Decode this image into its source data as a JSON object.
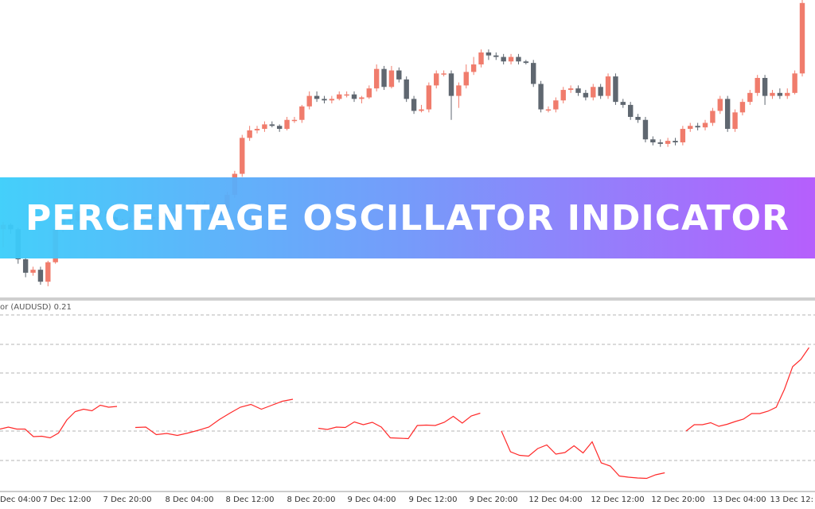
{
  "banner": {
    "title": "PERCENTAGE OSCILLATOR INDICATOR"
  },
  "indicator": {
    "label": "or (AUDUSD) 0.21"
  },
  "colors": {
    "bull": "#f07c6c",
    "bear": "#5f6770",
    "oscillator": "#ff2a2a",
    "grid": "#b5b5b5",
    "banner_left": "#3acdfa",
    "banner_right": "#b256fc"
  },
  "chart_data": [
    {
      "type": "candlestick",
      "title": "",
      "x_labels": [
        "Dec 04:00",
        "7 Dec 12:00",
        "7 Dec 20:00",
        "8 Dec 04:00",
        "8 Dec 12:00",
        "8 Dec 20:00",
        "9 Dec 04:00",
        "9 Dec 12:00",
        "9 Dec 20:00",
        "12 Dec 04:00",
        "12 Dec 12:00",
        "12 Dec 20:00",
        "13 Dec 04:00",
        "13 Dec 12:"
      ],
      "y_range": [
        0,
        100
      ],
      "candles": [
        [
          37,
          40,
          25,
          42
        ],
        [
          40,
          37,
          34,
          41
        ],
        [
          37,
          17,
          14,
          38
        ],
        [
          17,
          8,
          5,
          18
        ],
        [
          8,
          10,
          6,
          12
        ],
        [
          10,
          2,
          0,
          12
        ],
        [
          2,
          15,
          -1,
          16
        ],
        [
          15,
          37,
          14,
          39
        ],
        [
          37,
          44,
          35,
          45
        ],
        [
          44,
          43,
          40,
          46
        ],
        [
          43,
          49,
          42,
          51
        ],
        [
          49,
          50,
          47,
          52
        ],
        [
          50,
          48,
          46,
          51
        ],
        [
          48,
          49,
          45,
          50
        ],
        [
          49,
          45,
          44,
          50
        ],
        [
          45,
          42,
          40,
          46
        ],
        [
          42,
          42,
          40,
          44
        ],
        [
          42,
          43,
          40,
          45
        ],
        [
          43,
          43,
          41,
          45
        ],
        [
          43,
          44,
          41,
          46
        ],
        [
          44,
          45,
          42,
          46
        ],
        [
          45,
          45,
          43,
          47
        ],
        [
          45,
          48,
          44,
          50
        ],
        [
          48,
          51,
          47,
          53
        ],
        [
          51,
          52,
          49,
          53
        ],
        [
          52,
          52,
          48,
          54
        ],
        [
          52,
          54,
          51,
          56
        ],
        [
          54,
          50,
          48,
          56
        ],
        [
          50,
          47,
          45,
          52
        ],
        [
          47,
          51,
          46,
          53
        ],
        [
          51,
          60,
          50,
          62
        ],
        [
          60,
          74,
          58,
          76
        ],
        [
          74,
          98,
          72,
          100
        ],
        [
          98,
          103,
          96,
          106
        ],
        [
          103,
          104,
          101,
          106
        ],
        [
          104,
          107,
          102,
          109
        ],
        [
          107,
          106,
          105,
          109
        ],
        [
          106,
          104,
          102,
          107
        ],
        [
          104,
          110,
          103,
          112
        ],
        [
          110,
          110,
          108,
          112
        ],
        [
          110,
          119,
          108,
          120
        ],
        [
          119,
          126,
          117,
          129
        ],
        [
          126,
          124,
          122,
          129
        ],
        [
          124,
          123,
          121,
          126
        ],
        [
          123,
          124,
          121,
          126
        ],
        [
          124,
          127,
          123,
          129
        ],
        [
          127,
          127,
          125,
          129
        ],
        [
          127,
          124,
          122,
          129
        ],
        [
          124,
          125,
          121,
          126
        ],
        [
          125,
          131,
          124,
          133
        ],
        [
          131,
          144,
          129,
          147
        ],
        [
          144,
          132,
          130,
          146
        ],
        [
          132,
          143,
          131,
          146
        ],
        [
          143,
          137,
          135,
          145
        ],
        [
          137,
          124,
          122,
          139
        ],
        [
          124,
          116,
          114,
          126
        ],
        [
          116,
          117,
          115,
          120
        ],
        [
          117,
          133,
          115,
          135
        ],
        [
          133,
          141,
          131,
          143
        ],
        [
          141,
          141,
          139,
          143
        ],
        [
          141,
          126,
          110,
          143
        ],
        [
          126,
          133,
          118,
          135
        ],
        [
          133,
          142,
          131,
          147
        ],
        [
          142,
          147,
          140,
          152
        ],
        [
          147,
          155,
          145,
          157
        ],
        [
          155,
          153,
          150,
          157
        ],
        [
          153,
          152,
          150,
          155
        ],
        [
          152,
          149,
          147,
          154
        ],
        [
          149,
          152,
          147,
          154
        ],
        [
          152,
          149,
          147,
          154
        ],
        [
          149,
          148,
          147,
          150
        ],
        [
          148,
          134,
          132,
          150
        ],
        [
          134,
          117,
          115,
          136
        ],
        [
          117,
          117,
          115,
          119
        ],
        [
          117,
          123,
          115,
          125
        ],
        [
          123,
          130,
          121,
          132
        ],
        [
          130,
          131,
          128,
          133
        ],
        [
          131,
          128,
          126,
          133
        ],
        [
          128,
          125,
          123,
          130
        ],
        [
          125,
          132,
          123,
          134
        ],
        [
          132,
          126,
          124,
          134
        ],
        [
          126,
          139,
          124,
          141
        ],
        [
          139,
          122,
          120,
          141
        ],
        [
          122,
          120,
          118,
          124
        ],
        [
          120,
          112,
          110,
          122
        ],
        [
          112,
          110,
          108,
          114
        ],
        [
          110,
          97,
          95,
          112
        ],
        [
          97,
          95,
          93,
          99
        ],
        [
          95,
          94,
          92,
          97
        ],
        [
          94,
          96,
          92,
          98
        ],
        [
          96,
          95,
          93,
          98
        ],
        [
          95,
          104,
          93,
          106
        ],
        [
          104,
          106,
          102,
          108
        ],
        [
          106,
          105,
          103,
          108
        ],
        [
          105,
          108,
          103,
          110
        ],
        [
          108,
          116,
          106,
          118
        ],
        [
          116,
          124,
          114,
          126
        ],
        [
          124,
          104,
          102,
          126
        ],
        [
          104,
          115,
          102,
          117
        ],
        [
          115,
          122,
          113,
          124
        ],
        [
          122,
          128,
          120,
          130
        ],
        [
          128,
          138,
          126,
          140
        ],
        [
          138,
          126,
          120,
          140
        ],
        [
          126,
          128,
          124,
          130
        ],
        [
          128,
          126,
          124,
          131
        ],
        [
          126,
          128,
          124,
          131
        ],
        [
          128,
          141,
          127,
          143
        ],
        [
          141,
          188,
          139,
          193
        ]
      ]
    },
    {
      "type": "line",
      "title": "",
      "series": [
        {
          "name": "",
          "segments": [
            [
              0.05,
              0.1,
              0.05,
              0.05,
              -0.14,
              -0.13,
              -0.17,
              -0.05,
              0.28,
              0.49,
              0.55,
              0.51,
              0.65,
              0.6,
              0.62
            ],
            [
              0.09,
              0.1,
              -0.09,
              -0.06,
              -0.11,
              -0.05,
              0.02,
              0.1,
              0.29,
              0.45,
              0.6,
              0.67,
              0.55,
              0.65,
              0.75,
              0.8
            ],
            [
              0.07,
              0.04,
              0.1,
              0.09,
              0.23,
              0.16,
              0.22,
              0.1,
              -0.17,
              -0.18,
              -0.19,
              0.14,
              0.15,
              0.14,
              0.22,
              0.37,
              0.2,
              0.38,
              0.45
            ],
            [
              0.0,
              -0.52,
              -0.61,
              -0.63,
              -0.44,
              -0.35,
              -0.58,
              -0.54,
              -0.37,
              -0.55,
              -0.27,
              -0.8,
              -0.88,
              -1.13,
              -1.16,
              -1.18,
              -1.19,
              -1.1,
              -1.05
            ],
            [
              0.0,
              0.16,
              0.16,
              0.21,
              0.12,
              0.17,
              0.24,
              0.3,
              0.44,
              0.44,
              0.5,
              0.6,
              1.05,
              1.62,
              1.8,
              2.1
            ]
          ]
        }
      ]
    }
  ]
}
